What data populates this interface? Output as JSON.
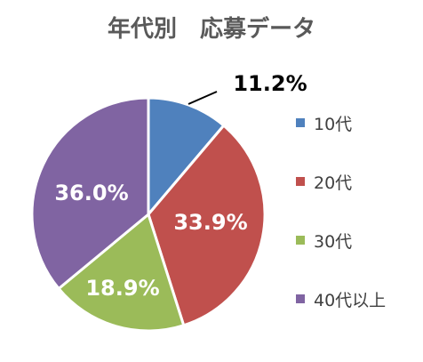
{
  "chart_data": {
    "type": "pie",
    "title": "年代別　応募データ",
    "categories": [
      "10代",
      "20代",
      "30代",
      "40代以上"
    ],
    "values": [
      11.2,
      33.9,
      18.9,
      36.0
    ],
    "data_labels": [
      "11.2%",
      "33.9%",
      "18.9%",
      "36.0%"
    ],
    "colors": [
      "#4f81bd",
      "#c0504d",
      "#9bbb59",
      "#8064a2"
    ],
    "start_angle": "12 o'clock",
    "direction": "clockwise",
    "legend_position": "right"
  }
}
